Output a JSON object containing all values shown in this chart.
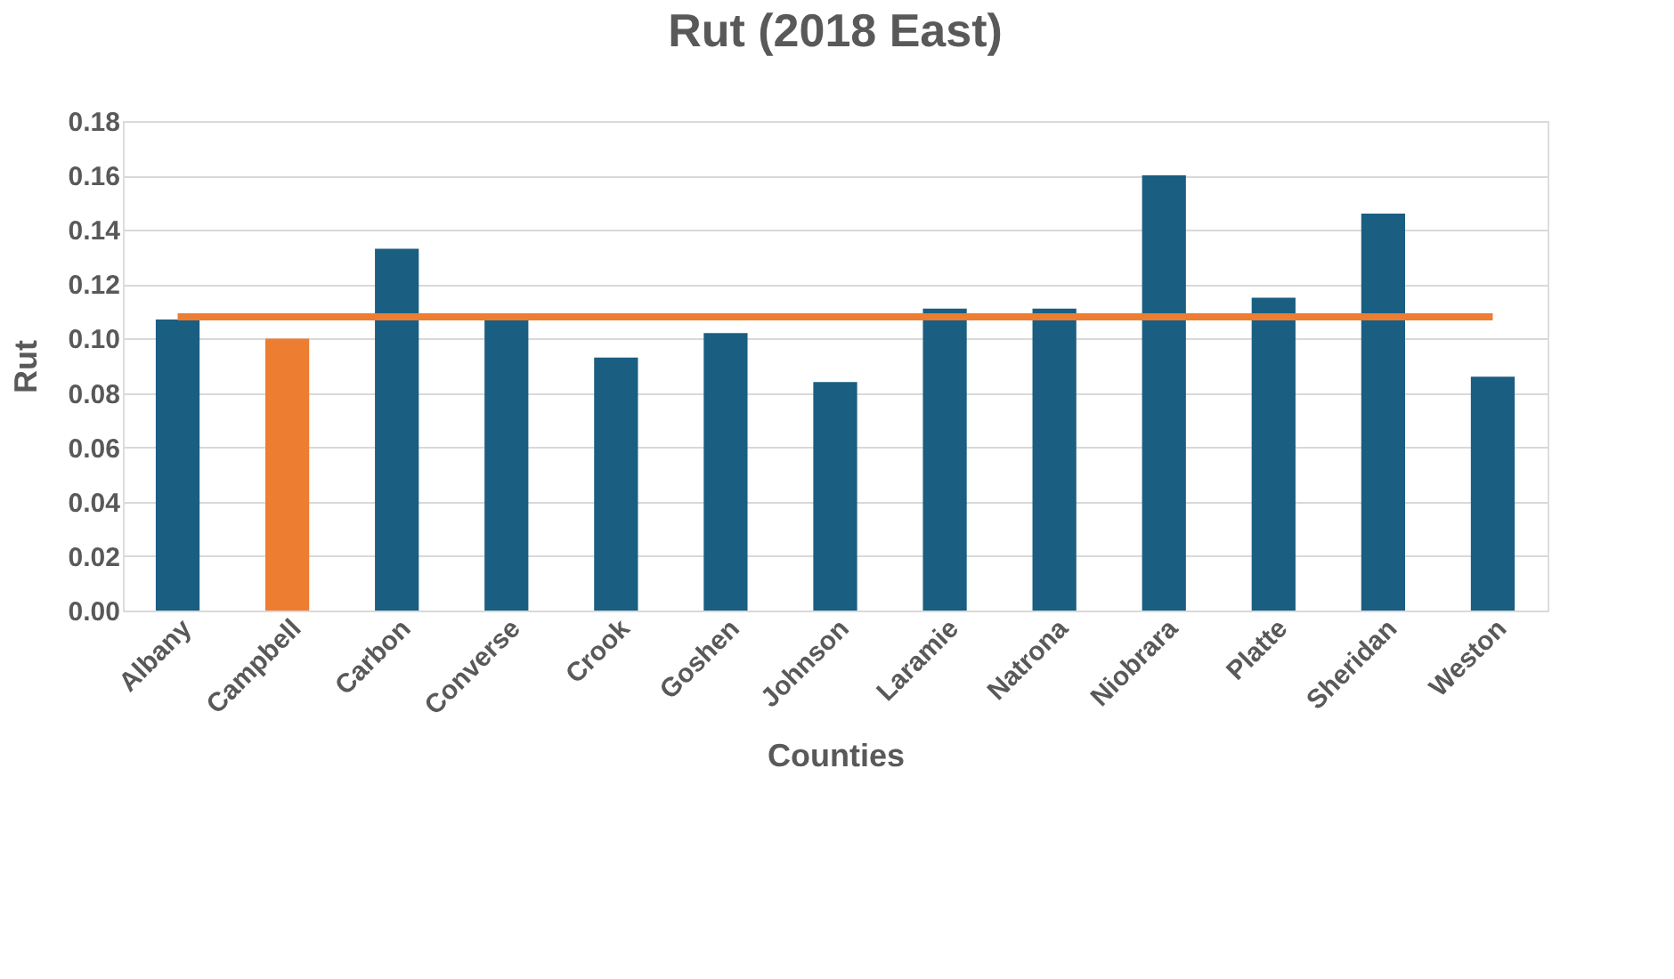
{
  "chart_data": {
    "type": "bar",
    "title": "Rut (2018 East)",
    "xlabel": "Counties",
    "ylabel": "Rut",
    "categories": [
      "Albany",
      "Campbell",
      "Carbon",
      "Converse",
      "Crook",
      "Goshen",
      "Johnson",
      "Laramie",
      "Natrona",
      "Niobrara",
      "Platte",
      "Sheridan",
      "Weston"
    ],
    "values": [
      0.107,
      0.1,
      0.133,
      0.108,
      0.093,
      0.102,
      0.084,
      0.111,
      0.111,
      0.16,
      0.115,
      0.146,
      0.086
    ],
    "colors": [
      "#1a5e82",
      "#ed7d31",
      "#1a5e82",
      "#1a5e82",
      "#1a5e82",
      "#1a5e82",
      "#1a5e82",
      "#1a5e82",
      "#1a5e82",
      "#1a5e82",
      "#1a5e82",
      "#1a5e82",
      "#1a5e82"
    ],
    "ylim": [
      0,
      0.18
    ],
    "yticks": [
      {
        "value": 0,
        "label": "0.00"
      },
      {
        "value": 0.02,
        "label": "0.02"
      },
      {
        "value": 0.04,
        "label": "0.04"
      },
      {
        "value": 0.06,
        "label": "0.06"
      },
      {
        "value": 0.08,
        "label": "0.08"
      },
      {
        "value": 0.1,
        "label": "0.10"
      },
      {
        "value": 0.12,
        "label": "0.12"
      },
      {
        "value": 0.14,
        "label": "0.14"
      },
      {
        "value": 0.16,
        "label": "0.16"
      },
      {
        "value": 0.18,
        "label": "0.18"
      }
    ],
    "grid": "y",
    "ref_lines": [
      {
        "axis": "y",
        "value": 0.108,
        "color": "#ed7d31"
      }
    ]
  }
}
